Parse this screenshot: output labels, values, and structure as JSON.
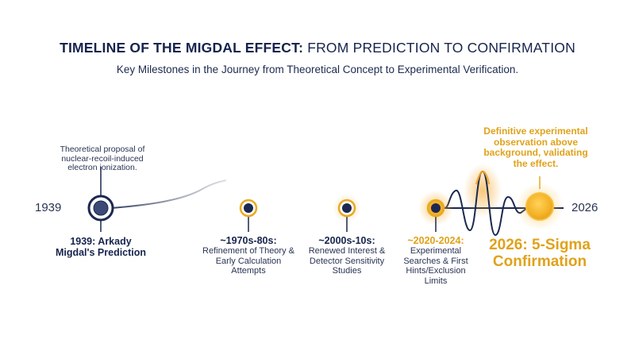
{
  "title_bold": "TIMELINE OF THE MIGDAL EFFECT:",
  "title_rest": "FROM PREDICTION TO CONFIRMATION",
  "subtitle": "Key Milestones in the Journey from Theoretical Concept to Experimental Verification.",
  "axis": {
    "start_label": "1939",
    "end_label": "2026"
  },
  "top_note": "Theoretical proposal of nuclear-recoil-induced electron ionization.",
  "gold_note": "Definitive experimental observation above background, validating the effect.",
  "milestones": [
    {
      "heading": "1939: Arkady Migdal's Prediction",
      "detail": ""
    },
    {
      "heading": "~1970s-80s:",
      "detail": "Refinement of Theory & Early Calculation Attempts"
    },
    {
      "heading": "~2000s-10s:",
      "detail": "Renewed Interest & Detector Sensitivity Studies"
    },
    {
      "heading": "~2020-2024:",
      "detail": "Experimental Searches & First Hints/Exclusion Limits"
    },
    {
      "heading": "2026: 5-Sigma Confirmation",
      "detail": ""
    }
  ],
  "colors": {
    "navy": "#1b2850",
    "gold": "#e9a920",
    "gold_bright": "#f6be2c",
    "grey": "#b8bcc6"
  }
}
